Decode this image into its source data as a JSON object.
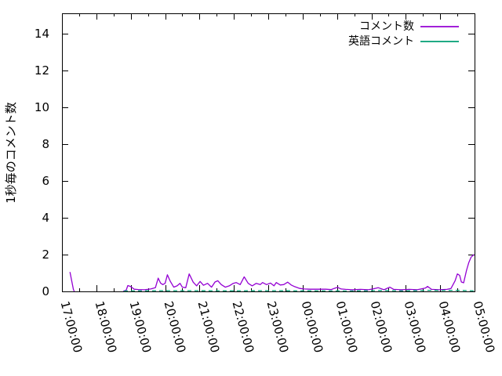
{
  "chart_data": {
    "type": "line",
    "title": "",
    "xlabel": "",
    "ylabel": "1秒毎のコメント数",
    "x_tick_labels": [
      "17:00:00",
      "18:00:00",
      "19:00:00",
      "20:00:00",
      "21:00:00",
      "22:00:00",
      "23:00:00",
      "00:00:00",
      "01:00:00",
      "02:00:00",
      "03:00:00",
      "04:00:00",
      "05:00:00"
    ],
    "x_axis_unit": "time (hh:mm:ss), minutes measured from 17:00:00",
    "x_range_minutes": [
      0,
      720
    ],
    "x_minor_tick_minutes": 30,
    "y_ticks": [
      0,
      2,
      4,
      6,
      8,
      10,
      12,
      14
    ],
    "ylim": [
      0,
      15.1
    ],
    "grid": false,
    "legend_position": "top-right-inside",
    "background_color": "#ffffff",
    "axis_color": "#000000",
    "series": [
      {
        "name": "コメント数",
        "color": "#9400d3",
        "style": "solid",
        "segments": [
          [
            [
              14,
              1.05
            ],
            [
              20,
              0.1
            ],
            [
              21.5,
              0
            ]
          ],
          [
            [
              107,
              0.02
            ],
            [
              112,
              0.06
            ],
            [
              115,
              0.32
            ],
            [
              120,
              0.26
            ],
            [
              126,
              0.12
            ],
            [
              133,
              0.1
            ],
            [
              144,
              0.09
            ],
            [
              155,
              0.13
            ],
            [
              163,
              0.2
            ],
            [
              168,
              0.72
            ],
            [
              172,
              0.45
            ],
            [
              176,
              0.37
            ],
            [
              180,
              0.44
            ],
            [
              184,
              0.9
            ],
            [
              189,
              0.55
            ],
            [
              195,
              0.23
            ],
            [
              201,
              0.3
            ],
            [
              206,
              0.44
            ],
            [
              210,
              0.23
            ],
            [
              216,
              0.2
            ],
            [
              222,
              0.95
            ],
            [
              229,
              0.5
            ],
            [
              235,
              0.3
            ],
            [
              241,
              0.54
            ],
            [
              247,
              0.33
            ],
            [
              254,
              0.44
            ],
            [
              261,
              0.23
            ],
            [
              267,
              0.51
            ],
            [
              272,
              0.58
            ],
            [
              278,
              0.37
            ],
            [
              285,
              0.23
            ],
            [
              292,
              0.3
            ],
            [
              299,
              0.44
            ],
            [
              304,
              0.48
            ],
            [
              311,
              0.37
            ],
            [
              318,
              0.79
            ],
            [
              325,
              0.44
            ],
            [
              332,
              0.3
            ],
            [
              339,
              0.44
            ],
            [
              346,
              0.37
            ],
            [
              350,
              0.48
            ],
            [
              357,
              0.37
            ],
            [
              364,
              0.45
            ],
            [
              370,
              0.3
            ],
            [
              374,
              0.48
            ],
            [
              381,
              0.35
            ],
            [
              387,
              0.37
            ],
            [
              394,
              0.5
            ],
            [
              400,
              0.35
            ],
            [
              406,
              0.26
            ],
            [
              415,
              0.16
            ],
            [
              423,
              0.13
            ],
            [
              433,
              0.12
            ],
            [
              445,
              0.12
            ],
            [
              460,
              0.12
            ],
            [
              470,
              0.1
            ],
            [
              475,
              0.16
            ],
            [
              481,
              0.22
            ],
            [
              487,
              0.13
            ],
            [
              495,
              0.11
            ],
            [
              507,
              0.09
            ],
            [
              521,
              0.11
            ],
            [
              535,
              0.09
            ],
            [
              546,
              0.16
            ],
            [
              552,
              0.2
            ],
            [
              562,
              0.09
            ],
            [
              572,
              0.23
            ],
            [
              579,
              0.11
            ],
            [
              592,
              0.09
            ],
            [
              606,
              0.11
            ],
            [
              620,
              0.09
            ],
            [
              634,
              0.18
            ],
            [
              638,
              0.27
            ],
            [
              645,
              0.11
            ],
            [
              658,
              0.09
            ],
            [
              672,
              0.11
            ],
            [
              679,
              0.16
            ],
            [
              686,
              0.58
            ],
            [
              690,
              0.95
            ],
            [
              694,
              0.87
            ],
            [
              697,
              0.51
            ],
            [
              701,
              0.47
            ],
            [
              706,
              1.15
            ],
            [
              710,
              1.57
            ],
            [
              714,
              1.86
            ],
            [
              719,
              2.0
            ]
          ]
        ]
      },
      {
        "name": "英語コメント",
        "color": "#009e73",
        "style": "dashed",
        "segments": [
          [
            [
              108,
              0.02
            ],
            [
              160,
              0.04
            ],
            [
              220,
              0.04
            ],
            [
              290,
              0.03
            ],
            [
              360,
              0.04
            ],
            [
              430,
              0.03
            ],
            [
              500,
              0.02
            ],
            [
              560,
              0.05
            ],
            [
              600,
              0.03
            ],
            [
              640,
              0.06
            ],
            [
              660,
              0.05
            ],
            [
              690,
              0.06
            ],
            [
              719,
              0.03
            ]
          ]
        ]
      }
    ]
  }
}
